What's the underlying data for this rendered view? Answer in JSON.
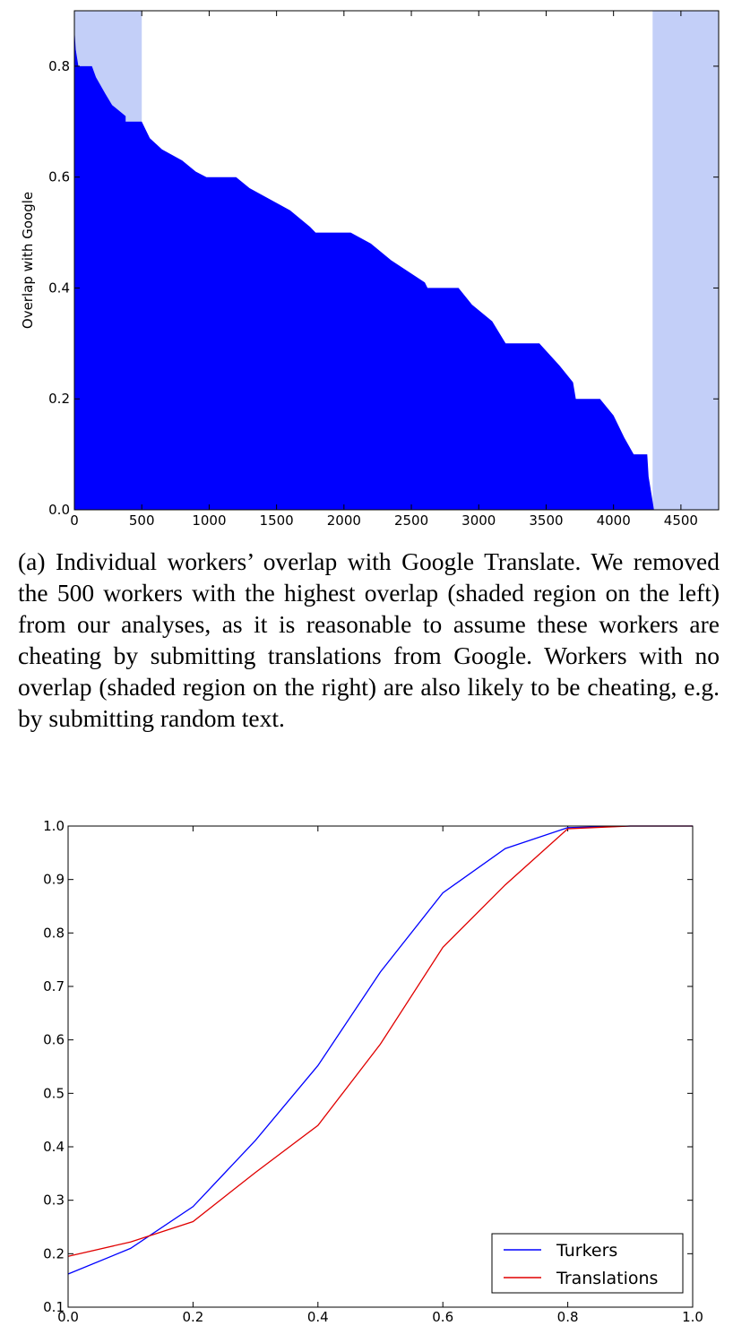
{
  "caption": "(a) Individual workers’ overlap with Google Translate. We removed the 500 workers with the highest overlap (shaded region on the left) from our analyses, as it is rea­sonable to assume these workers are cheating by submit­ting translations from Google. Workers with no overlap (shaded region on the right) are also likely to be cheating, e.g. by submitting random text.",
  "colors": {
    "bars": "#0000ff",
    "shade": "#c3cff8",
    "turkers": "#0000ff",
    "translations": "#e00000"
  },
  "chart_data": [
    {
      "type": "bar",
      "title": "",
      "xlabel": "",
      "ylabel": "Overlap with Google",
      "xlim": [
        0,
        4780
      ],
      "ylim": [
        0,
        0.9
      ],
      "xticks": [
        0,
        500,
        1000,
        1500,
        2000,
        2500,
        3000,
        3500,
        4000,
        4500
      ],
      "yticks": [
        0.0,
        0.2,
        0.4,
        0.6,
        0.8
      ],
      "ytick_labels": [
        "0.0",
        "0.2",
        "0.4",
        "0.6",
        "0.8"
      ],
      "shaded_regions": [
        [
          0,
          500
        ],
        [
          4290,
          4780
        ]
      ],
      "n_workers": 4300,
      "sorted_values_profile": [
        [
          0,
          0.87
        ],
        [
          10,
          0.83
        ],
        [
          30,
          0.8
        ],
        [
          130,
          0.8
        ],
        [
          160,
          0.78
        ],
        [
          230,
          0.75
        ],
        [
          280,
          0.73
        ],
        [
          380,
          0.71
        ],
        [
          380,
          0.7
        ],
        [
          500,
          0.7
        ],
        [
          560,
          0.67
        ],
        [
          650,
          0.65
        ],
        [
          800,
          0.63
        ],
        [
          900,
          0.61
        ],
        [
          980,
          0.6
        ],
        [
          1200,
          0.6
        ],
        [
          1300,
          0.58
        ],
        [
          1450,
          0.56
        ],
        [
          1600,
          0.54
        ],
        [
          1750,
          0.51
        ],
        [
          1790,
          0.5
        ],
        [
          2050,
          0.5
        ],
        [
          2200,
          0.48
        ],
        [
          2350,
          0.45
        ],
        [
          2600,
          0.41
        ],
        [
          2620,
          0.4
        ],
        [
          2850,
          0.4
        ],
        [
          2950,
          0.37
        ],
        [
          3100,
          0.34
        ],
        [
          3200,
          0.3
        ],
        [
          3450,
          0.3
        ],
        [
          3600,
          0.26
        ],
        [
          3700,
          0.23
        ],
        [
          3720,
          0.2
        ],
        [
          3900,
          0.2
        ],
        [
          4000,
          0.17
        ],
        [
          4080,
          0.13
        ],
        [
          4150,
          0.1
        ],
        [
          4250,
          0.1
        ],
        [
          4260,
          0.06
        ],
        [
          4280,
          0.03
        ],
        [
          4300,
          0.0
        ]
      ],
      "grid": false
    },
    {
      "type": "line",
      "title": "",
      "xlabel": "",
      "ylabel": "",
      "xlim": [
        0.0,
        1.0
      ],
      "ylim": [
        0.1,
        1.0
      ],
      "xticks": [
        0.0,
        0.2,
        0.4,
        0.6,
        0.8,
        1.0
      ],
      "xtick_labels": [
        "0.0",
        "0.2",
        "0.4",
        "0.6",
        "0.8",
        "1.0"
      ],
      "yticks": [
        0.1,
        0.2,
        0.3,
        0.4,
        0.5,
        0.6,
        0.7,
        0.8,
        0.9,
        1.0
      ],
      "ytick_labels": [
        "0.1",
        "0.2",
        "0.3",
        "0.4",
        "0.5",
        "0.6",
        "0.7",
        "0.8",
        "0.9",
        "1.0"
      ],
      "x": [
        0.0,
        0.1,
        0.2,
        0.3,
        0.4,
        0.5,
        0.6,
        0.7,
        0.8,
        0.9,
        1.0
      ],
      "series": [
        {
          "name": "Turkers",
          "values": [
            0.162,
            0.21,
            0.288,
            0.412,
            0.552,
            0.727,
            0.875,
            0.958,
            0.997,
            1.0,
            1.0
          ]
        },
        {
          "name": "Translations",
          "values": [
            0.195,
            0.222,
            0.26,
            0.352,
            0.44,
            0.592,
            0.773,
            0.89,
            0.995,
            1.0,
            1.0
          ]
        }
      ],
      "legend": "lower-right",
      "grid": false
    }
  ]
}
